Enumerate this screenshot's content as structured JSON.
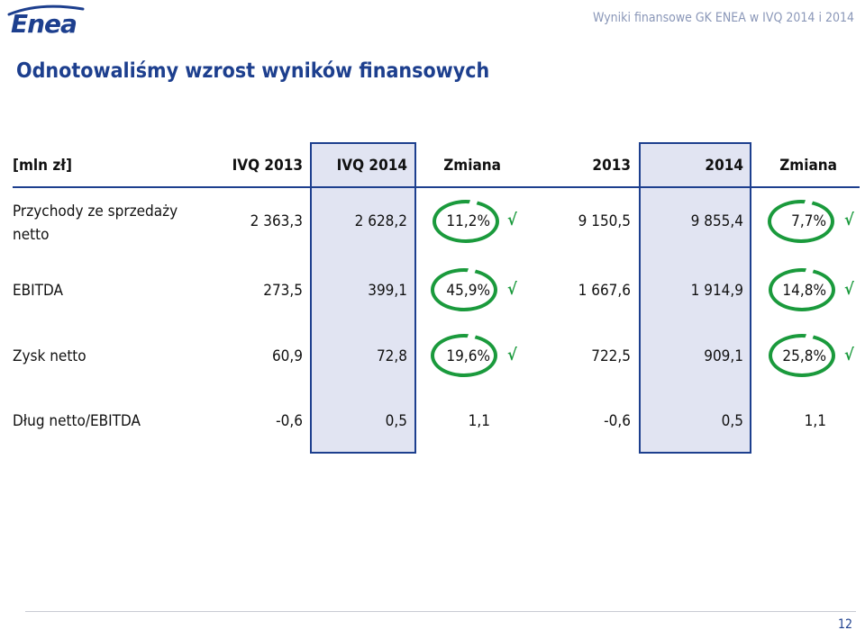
{
  "header": {
    "logo_text": "Enea",
    "title": "Wyniki finansowe GK ENEA w IVQ 2014 i 2014"
  },
  "slide": {
    "title": "Odnotowaliśmy wzrost wyników finansowych"
  },
  "table": {
    "unit_label": "[mln zł]",
    "columns": [
      "IVQ 2013",
      "IVQ 2014",
      "Zmiana",
      "2013",
      "2014",
      "Zmiana"
    ],
    "rows": [
      {
        "label_line1": "Przychody ze sprzedaży",
        "label_line2": "netto",
        "values": [
          "2 363,3",
          "2 628,2",
          "11,2%",
          "9 150,5",
          "9 855,4",
          "7,7%"
        ]
      },
      {
        "label_line1": "EBITDA",
        "label_line2": "",
        "values": [
          "273,5",
          "399,1",
          "45,9%",
          "1 667,6",
          "1 914,9",
          "14,8%"
        ]
      },
      {
        "label_line1": "Zysk netto",
        "label_line2": "",
        "values": [
          "60,9",
          "72,8",
          "19,6%",
          "722,5",
          "909,1",
          "25,8%"
        ]
      },
      {
        "label_line1": "Dług netto/EBITDA",
        "label_line2": "",
        "values": [
          "-0,6",
          "0,5",
          "1,1",
          "-0,6",
          "0,5",
          "1,1"
        ]
      }
    ],
    "check_mark": "√"
  },
  "colors": {
    "brand_blue": "#1d3f8e",
    "highlight_fill": "#e1e4f2",
    "positive_green": "#1a9a3c"
  },
  "footer": {
    "page_number": "12"
  }
}
